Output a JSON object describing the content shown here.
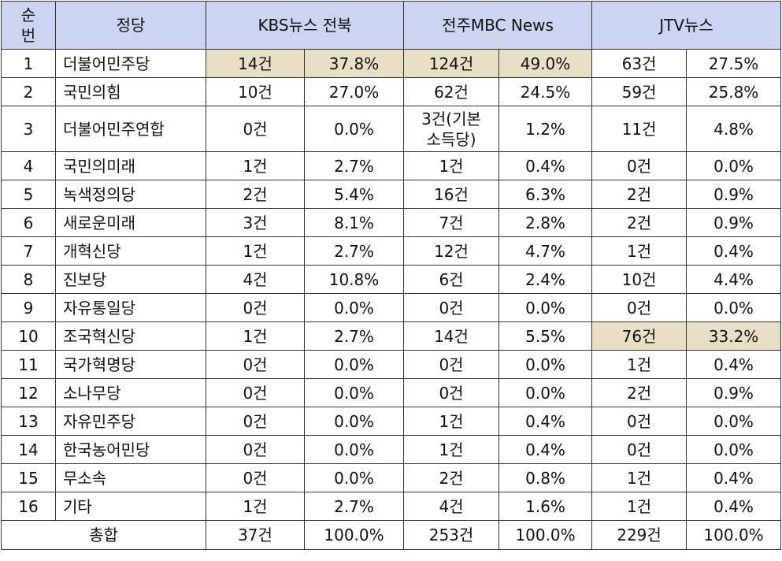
{
  "header": {
    "rank": "순번",
    "party": "정당",
    "sources": [
      "KBS뉴스 전북",
      "전주MBC News",
      "JTV뉴스"
    ]
  },
  "rows": [
    {
      "rank": "1",
      "party": "더불어민주당",
      "cells": [
        "14건",
        "37.8%",
        "124건",
        "49.0%",
        "63건",
        "27.5%"
      ]
    },
    {
      "rank": "2",
      "party": "국민의힘",
      "cells": [
        "10건",
        "27.0%",
        "62건",
        "24.5%",
        "59건",
        "25.8%"
      ]
    },
    {
      "rank": "3",
      "party": "더불어민주연합",
      "cells": [
        "0건",
        "0.0%",
        "3건(기본 소득당)",
        "1.2%",
        "11건",
        "4.8%"
      ]
    },
    {
      "rank": "4",
      "party": "국민의미래",
      "cells": [
        "1건",
        "2.7%",
        "1건",
        "0.4%",
        "0건",
        "0.0%"
      ]
    },
    {
      "rank": "5",
      "party": "녹색정의당",
      "cells": [
        "2건",
        "5.4%",
        "16건",
        "6.3%",
        "2건",
        "0.9%"
      ]
    },
    {
      "rank": "6",
      "party": "새로운미래",
      "cells": [
        "3건",
        "8.1%",
        "7건",
        "2.8%",
        "2건",
        "0.9%"
      ]
    },
    {
      "rank": "7",
      "party": "개혁신당",
      "cells": [
        "1건",
        "2.7%",
        "12건",
        "4.7%",
        "1건",
        "0.4%"
      ]
    },
    {
      "rank": "8",
      "party": "진보당",
      "cells": [
        "4건",
        "10.8%",
        "6건",
        "2.4%",
        "10건",
        "4.4%"
      ]
    },
    {
      "rank": "9",
      "party": "자유통일당",
      "cells": [
        "0건",
        "0.0%",
        "0건",
        "0.0%",
        "0건",
        "0.0%"
      ]
    },
    {
      "rank": "10",
      "party": "조국혁신당",
      "cells": [
        "1건",
        "2.7%",
        "14건",
        "5.5%",
        "76건",
        "33.2%"
      ]
    },
    {
      "rank": "11",
      "party": "국가혁명당",
      "cells": [
        "0건",
        "0.0%",
        "0건",
        "0.0%",
        "1건",
        "0.4%"
      ]
    },
    {
      "rank": "12",
      "party": "소나무당",
      "cells": [
        "0건",
        "0.0%",
        "0건",
        "0.0%",
        "2건",
        "0.9%"
      ]
    },
    {
      "rank": "13",
      "party": "자유민주당",
      "cells": [
        "0건",
        "0.0%",
        "1건",
        "0.4%",
        "0건",
        "0.0%"
      ]
    },
    {
      "rank": "14",
      "party": "한국농어민당",
      "cells": [
        "0건",
        "0.0%",
        "1건",
        "0.4%",
        "0건",
        "0.0%"
      ]
    },
    {
      "rank": "15",
      "party": "무소속",
      "cells": [
        "0건",
        "0.0%",
        "2건",
        "0.8%",
        "1건",
        "0.4%"
      ]
    },
    {
      "rank": "16",
      "party": "기타",
      "cells": [
        "1건",
        "2.7%",
        "4건",
        "1.6%",
        "1건",
        "0.4%"
      ]
    }
  ],
  "total": {
    "label": "총합",
    "cells": [
      "37건",
      "100.0%",
      "253건",
      "100.0%",
      "229건",
      "100.0%"
    ]
  },
  "colors": {
    "header_bg": "#ccd4f2",
    "highlight_bg": "#e8e0c6",
    "border": "#333333"
  }
}
